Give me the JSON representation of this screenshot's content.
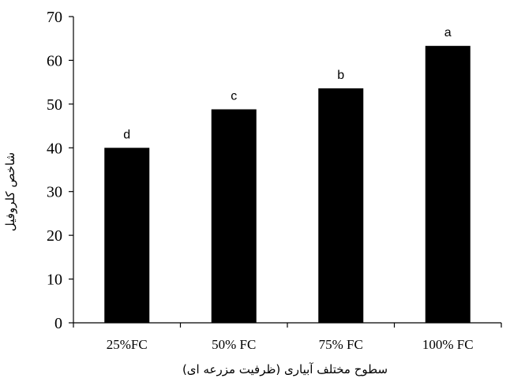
{
  "chart_data": {
    "type": "bar",
    "categories": [
      "25%FC",
      "50% FC",
      "75% FC",
      "100% FC"
    ],
    "values": [
      40.0,
      48.8,
      53.6,
      63.3
    ],
    "data_labels": [
      "d",
      "c",
      "b",
      "a"
    ],
    "xlabel": "سطوح مختلف آبیاری (ظرفیت مزرعه ای)",
    "ylabel": "شاخص کلروفیل",
    "ylim": [
      0,
      70
    ],
    "yticks": [
      0,
      10,
      20,
      30,
      40,
      50,
      60,
      70
    ],
    "grid": false,
    "bar_color": "#000000"
  }
}
